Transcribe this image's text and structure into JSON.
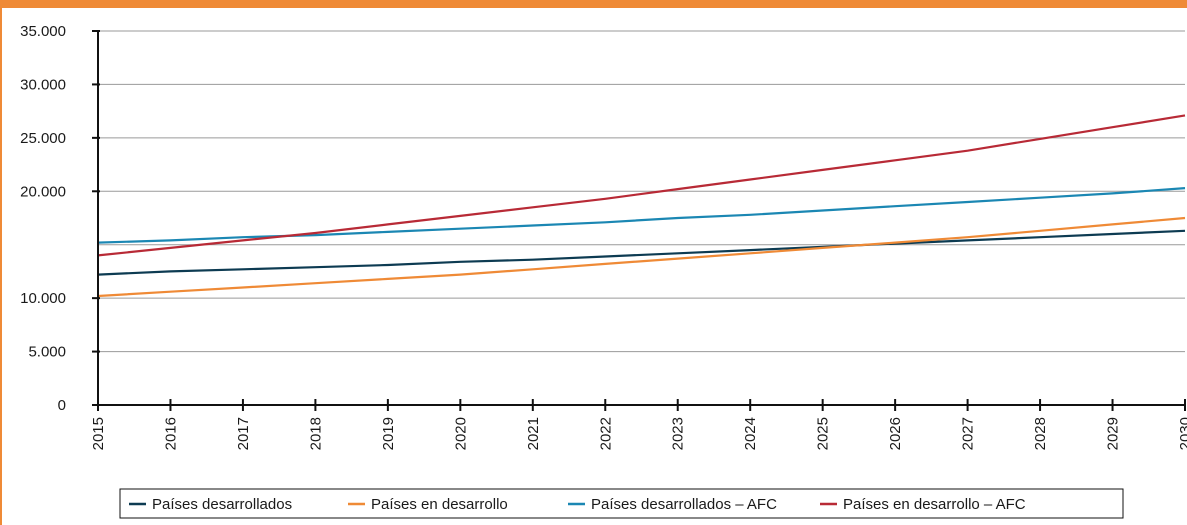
{
  "chart_data": {
    "type": "line",
    "title": "",
    "xlabel": "",
    "ylabel": "",
    "x": [
      "2015",
      "2016",
      "2017",
      "2018",
      "2019",
      "2020",
      "2021",
      "2022",
      "2023",
      "2024",
      "2025",
      "2026",
      "2027",
      "2028",
      "2029",
      "2030"
    ],
    "ylim": [
      0,
      35000
    ],
    "y_ticks": [
      "0",
      "5.000",
      "10.000",
      "20.000",
      "25.000",
      "30.000",
      "35.000"
    ],
    "y_tick_values": [
      0,
      5000,
      10000,
      20000,
      25000,
      30000,
      35000
    ],
    "legend_position": "bottom",
    "grid": true,
    "series": [
      {
        "name": "Países desarrollados",
        "color": "#0d3b52",
        "values": [
          12200,
          12500,
          12700,
          12900,
          13100,
          13400,
          13600,
          13900,
          14200,
          14500,
          14800,
          15100,
          15400,
          15700,
          16000,
          16300
        ]
      },
      {
        "name": "Países en desarrollo",
        "color": "#ef8a36",
        "values": [
          10200,
          10600,
          11000,
          11400,
          11800,
          12200,
          12700,
          13200,
          13700,
          14200,
          14700,
          15200,
          15700,
          16300,
          16900,
          17500
        ]
      },
      {
        "name": "Países desarrollados – AFC",
        "color": "#1b87b3",
        "values": [
          15200,
          15400,
          15700,
          15900,
          16200,
          16500,
          16800,
          17100,
          17500,
          17800,
          18200,
          18600,
          19000,
          19400,
          19800,
          20300
        ]
      },
      {
        "name": "Países en desarrollo – AFC",
        "color": "#b82a36",
        "values": [
          14000,
          14700,
          15400,
          16100,
          16900,
          17700,
          18500,
          19300,
          20200,
          21100,
          22000,
          22900,
          23800,
          24900,
          26000,
          27100
        ]
      }
    ]
  }
}
